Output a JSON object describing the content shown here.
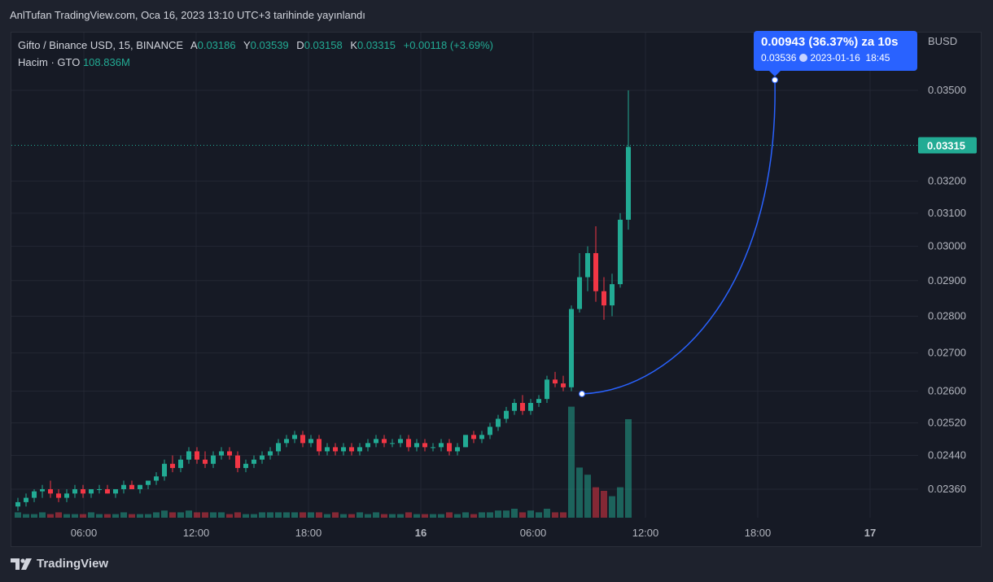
{
  "caption": "AnlTufan TradingView.com, Oca 16, 2023 13:10 UTC+3 tarihinde yayınlandı",
  "legend": {
    "symbol": "Gifto / Binance USD, 15, BINANCE",
    "a_label": "A",
    "a_value": "0.03186",
    "y_label": "Y",
    "y_value": "0.03539",
    "d_label": "D",
    "d_value": "0.03158",
    "k_label": "K",
    "k_value": "0.03315",
    "change": "+0.00118 (+3.69%)",
    "volume_label": "Hacim · GTO",
    "volume_value": "108.836M"
  },
  "callout": {
    "line1": "0.00943 (36.37%) za 10s",
    "price": "0.03536",
    "date": "2023-01-16",
    "time": "18:45"
  },
  "brand": "TradingView",
  "colors": {
    "up": "#22ab94",
    "down": "#f23645",
    "accent": "#2962ff",
    "background": "#161a25"
  },
  "chart_data": {
    "type": "candlestick",
    "symbol": "GTO/BUSD",
    "currency_label": "BUSD",
    "interval_minutes": 15,
    "last_price_label": "0.03315",
    "y_ticks": [
      "0.02360",
      "0.02440",
      "0.02520",
      "0.02600",
      "0.02700",
      "0.02800",
      "0.02900",
      "0.03000",
      "0.03100",
      "0.03200",
      "0.03500"
    ],
    "x_ticks": [
      "06:00",
      "12:00",
      "18:00",
      "16",
      "06:00",
      "12:00",
      "18:00",
      "17"
    ],
    "x_tick_hours": [
      6,
      12,
      18,
      24,
      30,
      36,
      42,
      48
    ],
    "ohlc": [
      [
        0.0232,
        0.0234,
        0.0231,
        0.0233
      ],
      [
        0.0233,
        0.0235,
        0.0232,
        0.0234
      ],
      [
        0.0234,
        0.0236,
        0.0233,
        0.02355
      ],
      [
        0.02355,
        0.0237,
        0.0234,
        0.0236
      ],
      [
        0.0236,
        0.0238,
        0.0234,
        0.0235
      ],
      [
        0.0235,
        0.0236,
        0.0233,
        0.0234
      ],
      [
        0.0234,
        0.0236,
        0.0233,
        0.0235
      ],
      [
        0.0235,
        0.0237,
        0.0234,
        0.0236
      ],
      [
        0.0236,
        0.0237,
        0.0234,
        0.0235
      ],
      [
        0.0235,
        0.0236,
        0.0234,
        0.0236
      ],
      [
        0.0236,
        0.0237,
        0.0235,
        0.0236
      ],
      [
        0.0236,
        0.0237,
        0.0235,
        0.0235
      ],
      [
        0.0235,
        0.0236,
        0.0234,
        0.0236
      ],
      [
        0.0236,
        0.0238,
        0.0235,
        0.0237
      ],
      [
        0.0237,
        0.0238,
        0.0236,
        0.0236
      ],
      [
        0.0236,
        0.0237,
        0.0235,
        0.0237
      ],
      [
        0.0237,
        0.0238,
        0.0236,
        0.0238
      ],
      [
        0.0238,
        0.024,
        0.0237,
        0.0239
      ],
      [
        0.0239,
        0.0243,
        0.0238,
        0.0242
      ],
      [
        0.0242,
        0.0244,
        0.024,
        0.0241
      ],
      [
        0.0241,
        0.0244,
        0.024,
        0.0243
      ],
      [
        0.0243,
        0.0246,
        0.0242,
        0.0245
      ],
      [
        0.0245,
        0.0246,
        0.0242,
        0.0243
      ],
      [
        0.0243,
        0.0245,
        0.0241,
        0.0242
      ],
      [
        0.0242,
        0.0245,
        0.0241,
        0.0244
      ],
      [
        0.0244,
        0.0246,
        0.0243,
        0.0245
      ],
      [
        0.0245,
        0.0246,
        0.0243,
        0.0244
      ],
      [
        0.0244,
        0.0245,
        0.024,
        0.0241
      ],
      [
        0.0241,
        0.0243,
        0.024,
        0.0242
      ],
      [
        0.0242,
        0.0244,
        0.0241,
        0.0243
      ],
      [
        0.0243,
        0.0245,
        0.0242,
        0.0244
      ],
      [
        0.0244,
        0.0246,
        0.0243,
        0.0245
      ],
      [
        0.0245,
        0.0248,
        0.0244,
        0.0247
      ],
      [
        0.0247,
        0.0249,
        0.0246,
        0.0248
      ],
      [
        0.0248,
        0.025,
        0.0247,
        0.0249
      ],
      [
        0.0249,
        0.025,
        0.0246,
        0.0247
      ],
      [
        0.0247,
        0.0249,
        0.0246,
        0.0248
      ],
      [
        0.0248,
        0.0249,
        0.0244,
        0.0245
      ],
      [
        0.0245,
        0.0247,
        0.0244,
        0.0246
      ],
      [
        0.0246,
        0.0247,
        0.0244,
        0.0245
      ],
      [
        0.0245,
        0.0247,
        0.0244,
        0.0246
      ],
      [
        0.0246,
        0.0247,
        0.0244,
        0.0245
      ],
      [
        0.0245,
        0.0247,
        0.0244,
        0.0246
      ],
      [
        0.0246,
        0.0248,
        0.0245,
        0.0247
      ],
      [
        0.0247,
        0.0249,
        0.0246,
        0.0248
      ],
      [
        0.0248,
        0.0249,
        0.0246,
        0.0247
      ],
      [
        0.0247,
        0.0248,
        0.0246,
        0.0247
      ],
      [
        0.0247,
        0.0249,
        0.0246,
        0.0248
      ],
      [
        0.0248,
        0.0249,
        0.0245,
        0.0246
      ],
      [
        0.0246,
        0.0248,
        0.0245,
        0.0247
      ],
      [
        0.0247,
        0.0248,
        0.0245,
        0.0246
      ],
      [
        0.0246,
        0.0247,
        0.0245,
        0.0246
      ],
      [
        0.0246,
        0.0248,
        0.0245,
        0.0247
      ],
      [
        0.0247,
        0.0248,
        0.0244,
        0.0245
      ],
      [
        0.0245,
        0.0247,
        0.0244,
        0.0246
      ],
      [
        0.0246,
        0.0249,
        0.0246,
        0.0249
      ],
      [
        0.0249,
        0.025,
        0.0247,
        0.0248
      ],
      [
        0.0248,
        0.025,
        0.0247,
        0.0249
      ],
      [
        0.0249,
        0.0252,
        0.0248,
        0.0251
      ],
      [
        0.0251,
        0.0254,
        0.025,
        0.0253
      ],
      [
        0.0253,
        0.0256,
        0.0252,
        0.0255
      ],
      [
        0.0255,
        0.0258,
        0.0254,
        0.0257
      ],
      [
        0.0257,
        0.0259,
        0.0254,
        0.0255
      ],
      [
        0.0255,
        0.0258,
        0.0254,
        0.0257
      ],
      [
        0.0257,
        0.0259,
        0.0256,
        0.0258
      ],
      [
        0.0258,
        0.0264,
        0.0257,
        0.0263
      ],
      [
        0.0263,
        0.0265,
        0.0261,
        0.0262
      ],
      [
        0.0262,
        0.0264,
        0.026,
        0.0261
      ],
      [
        0.0261,
        0.0283,
        0.026,
        0.0282
      ],
      [
        0.0282,
        0.0298,
        0.0281,
        0.0291
      ],
      [
        0.0291,
        0.03,
        0.0287,
        0.0298
      ],
      [
        0.0298,
        0.0306,
        0.0284,
        0.0287
      ],
      [
        0.0287,
        0.0291,
        0.0279,
        0.0283
      ],
      [
        0.0283,
        0.0292,
        0.028,
        0.0289
      ],
      [
        0.0289,
        0.031,
        0.0288,
        0.0308
      ],
      [
        0.0308,
        0.035,
        0.0305,
        0.0331
      ]
    ],
    "volume_unit": "relative",
    "volumes": [
      3,
      2,
      2,
      3,
      2,
      3,
      2,
      2,
      2,
      3,
      2,
      2,
      2,
      3,
      2,
      2,
      2,
      3,
      4,
      3,
      3,
      4,
      3,
      3,
      3,
      3,
      2,
      3,
      2,
      2,
      3,
      3,
      3,
      3,
      3,
      3,
      3,
      3,
      2,
      3,
      2,
      2,
      3,
      2,
      3,
      2,
      2,
      2,
      3,
      2,
      2,
      2,
      2,
      3,
      2,
      3,
      2,
      3,
      3,
      4,
      4,
      5,
      3,
      4,
      3,
      5,
      3,
      3,
      62,
      28,
      24,
      17,
      15,
      12,
      17,
      55
    ],
    "projection": {
      "from_price": 0.02593,
      "to_price": 0.03536,
      "to_date": "2023-01-16",
      "to_time": "18:45"
    }
  }
}
